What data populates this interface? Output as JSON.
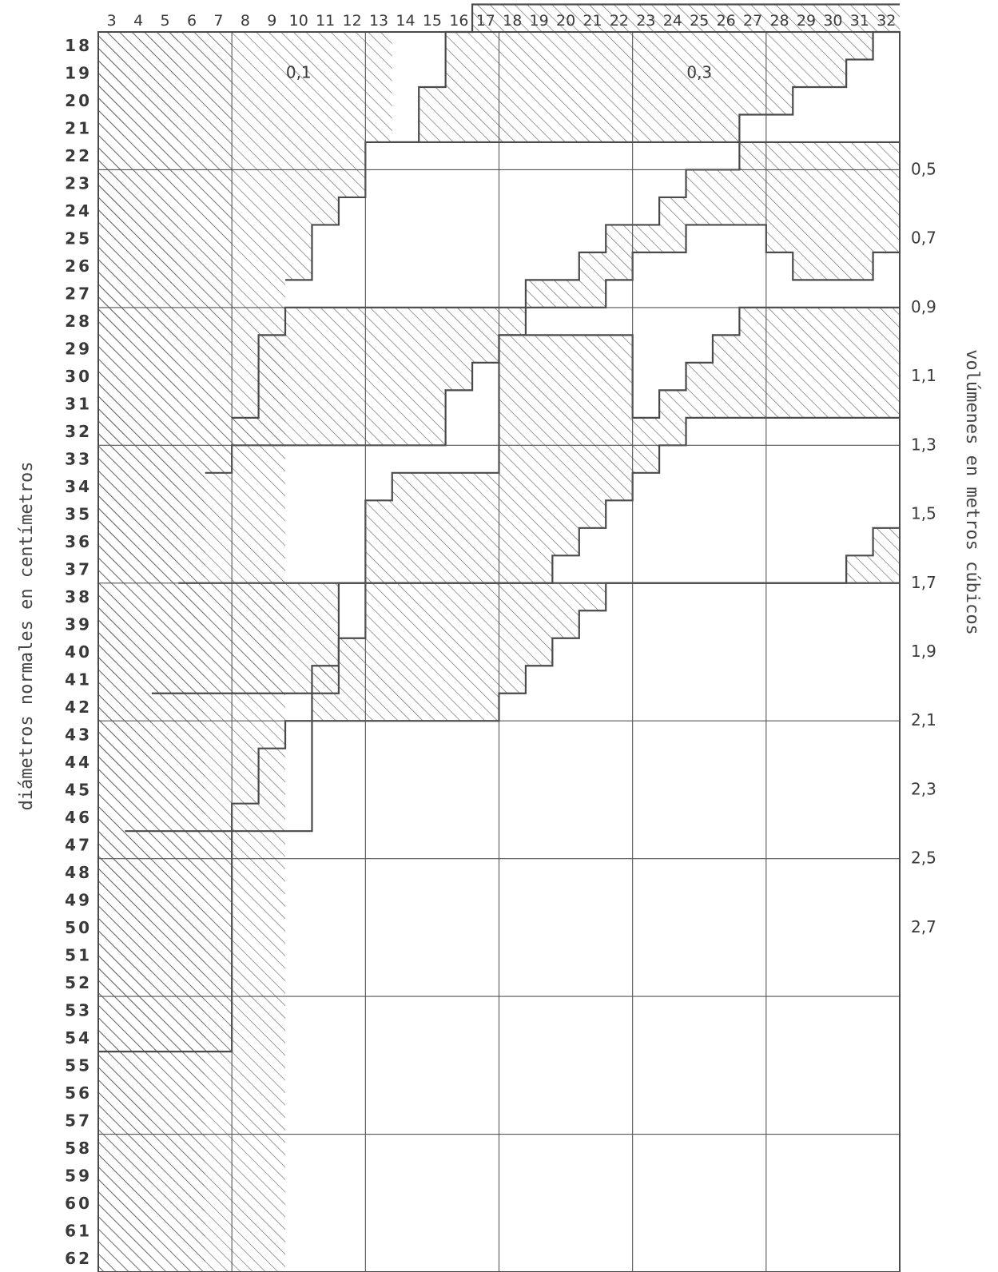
{
  "chart_data": {
    "type": "heatmap",
    "title": "",
    "xlabel": "",
    "ylabel": "diámetros normales en centímetros",
    "y2label": "volúmenes en metros cúbicos",
    "x_ticks": [
      "3",
      "4",
      "5",
      "6",
      "7",
      "8",
      "9",
      "10",
      "11",
      "12",
      "13",
      "14",
      "15",
      "16",
      "17",
      "18",
      "19",
      "20",
      "21",
      "22",
      "23",
      "24",
      "25",
      "26",
      "27",
      "28",
      "29",
      "30",
      "31",
      "32"
    ],
    "y_ticks": [
      "18",
      "19",
      "20",
      "21",
      "22",
      "23",
      "24",
      "25",
      "26",
      "27",
      "28",
      "29",
      "30",
      "31",
      "32",
      "33",
      "34",
      "35",
      "36",
      "37",
      "38",
      "39",
      "40",
      "41",
      "42",
      "43",
      "44",
      "45",
      "46",
      "47",
      "48",
      "49",
      "50",
      "51",
      "52",
      "53",
      "54",
      "55",
      "56",
      "57",
      "58",
      "59",
      "60",
      "61",
      "62"
    ],
    "bands_top_diameter_by_height": [
      [
        null,
        null,
        null,
        null,
        null,
        null,
        null,
        null,
        null,
        null,
        null,
        null,
        null,
        null,
        17,
        19,
        21,
        23,
        24,
        27,
        29,
        32,
        37,
        45,
        null,
        null
      ],
      [
        null,
        null,
        null,
        null,
        null,
        null,
        null,
        22,
        26,
        30,
        34,
        null,
        null,
        null,
        null,
        null,
        null,
        null,
        null,
        null,
        null,
        null,
        null,
        null,
        null,
        null
      ],
      [
        null,
        null,
        null,
        null,
        null,
        null,
        null,
        null,
        null,
        null,
        null,
        null,
        null,
        null,
        null,
        null,
        null,
        null,
        null,
        null,
        null,
        null,
        null,
        null,
        null,
        null
      ]
    ],
    "band_edges_by_height": {
      "3": [
        55,
        null
      ],
      "4": [
        47,
        55
      ],
      "5": [
        42,
        61
      ],
      "6": [
        38,
        null
      ],
      "7": [
        34,
        null
      ],
      "8": [
        32,
        58
      ],
      "9": [
        29,
        57
      ],
      "10": [
        27,
        50
      ],
      "11": [
        26,
        41
      ],
      "12": [
        24,
        null
      ],
      "13": [
        23,
        33
      ],
      "14": [
        22,
        36
      ],
      "15": [
        20,
        32
      ],
      "16": [
        18,
        30
      ],
      "17": [
        17,
        29
      ],
      "18": [
        17,
        28
      ],
      "19": [
        17,
        null
      ],
      "20": [
        17,
        null
      ],
      "21": [
        17,
        null
      ],
      "22": [
        17,
        null
      ],
      "23": [
        17,
        null
      ],
      "24": [
        17,
        null
      ],
      "25": [
        17,
        null
      ],
      "26": [
        17,
        null
      ],
      "27": [
        17,
        null
      ],
      "28": [
        17,
        null
      ],
      "29": [
        17,
        null
      ],
      "30": [
        17,
        null
      ],
      "31": [
        17,
        null
      ],
      "32": [
        17,
        null
      ]
    },
    "zones": [
      {
        "label": "0,1"
      },
      {
        "label": "0,3"
      },
      {
        "label": "0,5"
      },
      {
        "label": "0,7"
      },
      {
        "label": "0,9"
      },
      {
        "label": "1,1"
      },
      {
        "label": "1,3"
      },
      {
        "label": "1,5"
      },
      {
        "label": "1,7"
      },
      {
        "label": "1,9"
      },
      {
        "label": "2,1"
      },
      {
        "label": "2,3"
      },
      {
        "label": "2,5"
      },
      {
        "label": "2,7"
      }
    ],
    "boundaries": [
      {
        "name": "b1",
        "tops": [
          null,
          null,
          null,
          null,
          null,
          null,
          null,
          null,
          null,
          null,
          null,
          22,
          20,
          18,
          17,
          17,
          17,
          17,
          17,
          17,
          17,
          17,
          17,
          17,
          17,
          17,
          17,
          17,
          17,
          17
        ]
      },
      {
        "name": "b2",
        "tops": [
          null,
          null,
          null,
          null,
          null,
          null,
          null,
          27,
          25,
          24,
          22,
          22,
          22,
          22,
          22,
          22,
          22,
          22,
          22,
          22,
          22,
          22,
          22,
          22,
          21,
          21,
          20,
          20,
          19,
          18
        ]
      },
      {
        "name": "b3",
        "tops": [
          null,
          null,
          null,
          null,
          null,
          32,
          29,
          28,
          28,
          28,
          28,
          28,
          28,
          28,
          28,
          28,
          27,
          27,
          26,
          25,
          25,
          24,
          23,
          23,
          22,
          22,
          22,
          22,
          22,
          22
        ]
      },
      {
        "name": "b4",
        "tops": [
          null,
          null,
          null,
          null,
          34,
          33,
          33,
          33,
          33,
          33,
          33,
          33,
          33,
          31,
          30,
          29,
          28,
          28,
          28,
          27,
          26,
          26,
          25,
          25,
          25,
          26,
          27,
          27,
          27,
          26
        ]
      },
      {
        "name": "b5",
        "tops": [
          null,
          null,
          null,
          38,
          38,
          38,
          38,
          38,
          38,
          38,
          35,
          34,
          34,
          34,
          34,
          29,
          29,
          29,
          29,
          29,
          32,
          31,
          30,
          29,
          28,
          28,
          28,
          28,
          28,
          28
        ]
      },
      {
        "name": "b6",
        "tops": [
          null,
          null,
          42,
          42,
          42,
          42,
          42,
          42,
          42,
          38,
          38,
          38,
          38,
          38,
          38,
          38,
          38,
          37,
          36,
          35,
          34,
          33,
          32,
          32,
          32,
          32,
          32,
          32,
          32,
          32
        ]
      },
      {
        "name": "b7",
        "tops": [
          null,
          47,
          47,
          47,
          47,
          47,
          47,
          47,
          41,
          40,
          38,
          38,
          38,
          38,
          38,
          38,
          38,
          38,
          38,
          38,
          38,
          38,
          38,
          38,
          38,
          38,
          38,
          38,
          37,
          36
        ]
      },
      {
        "name": "b8",
        "tops": [
          55,
          55,
          55,
          55,
          55,
          46,
          44,
          43,
          43,
          43,
          43,
          43,
          43,
          43,
          43,
          42,
          41,
          40,
          39,
          38,
          38,
          38,
          38,
          38,
          38,
          38,
          38,
          38,
          38,
          38
        ]
      }
    ]
  }
}
